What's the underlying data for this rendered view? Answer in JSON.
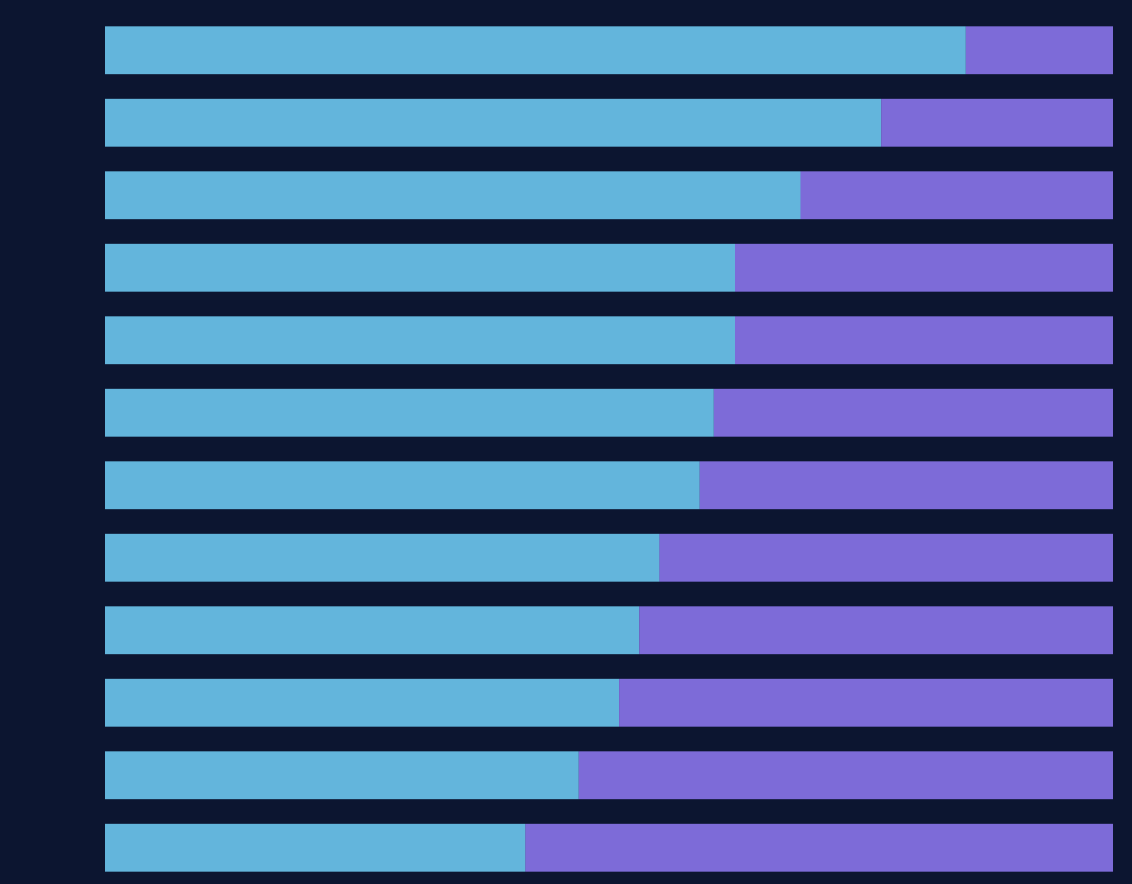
{
  "chart_data": {
    "type": "stacked-barh",
    "categories": [
      null,
      null,
      null,
      null,
      null,
      null,
      null,
      null,
      null,
      null,
      null,
      null
    ],
    "series": [
      {
        "color": "#63b5dc",
        "values": [
          85.4,
          77,
          69,
          62.5,
          62.5,
          60.4,
          59,
          55,
          53,
          51,
          47,
          41.7
        ]
      },
      {
        "color": "#7d6bd8",
        "values": [
          14.6,
          23,
          31,
          37.5,
          37.5,
          39.6,
          41,
          45,
          47,
          49,
          53,
          58.3
        ]
      }
    ],
    "xlim": [
      0,
      100
    ]
  }
}
